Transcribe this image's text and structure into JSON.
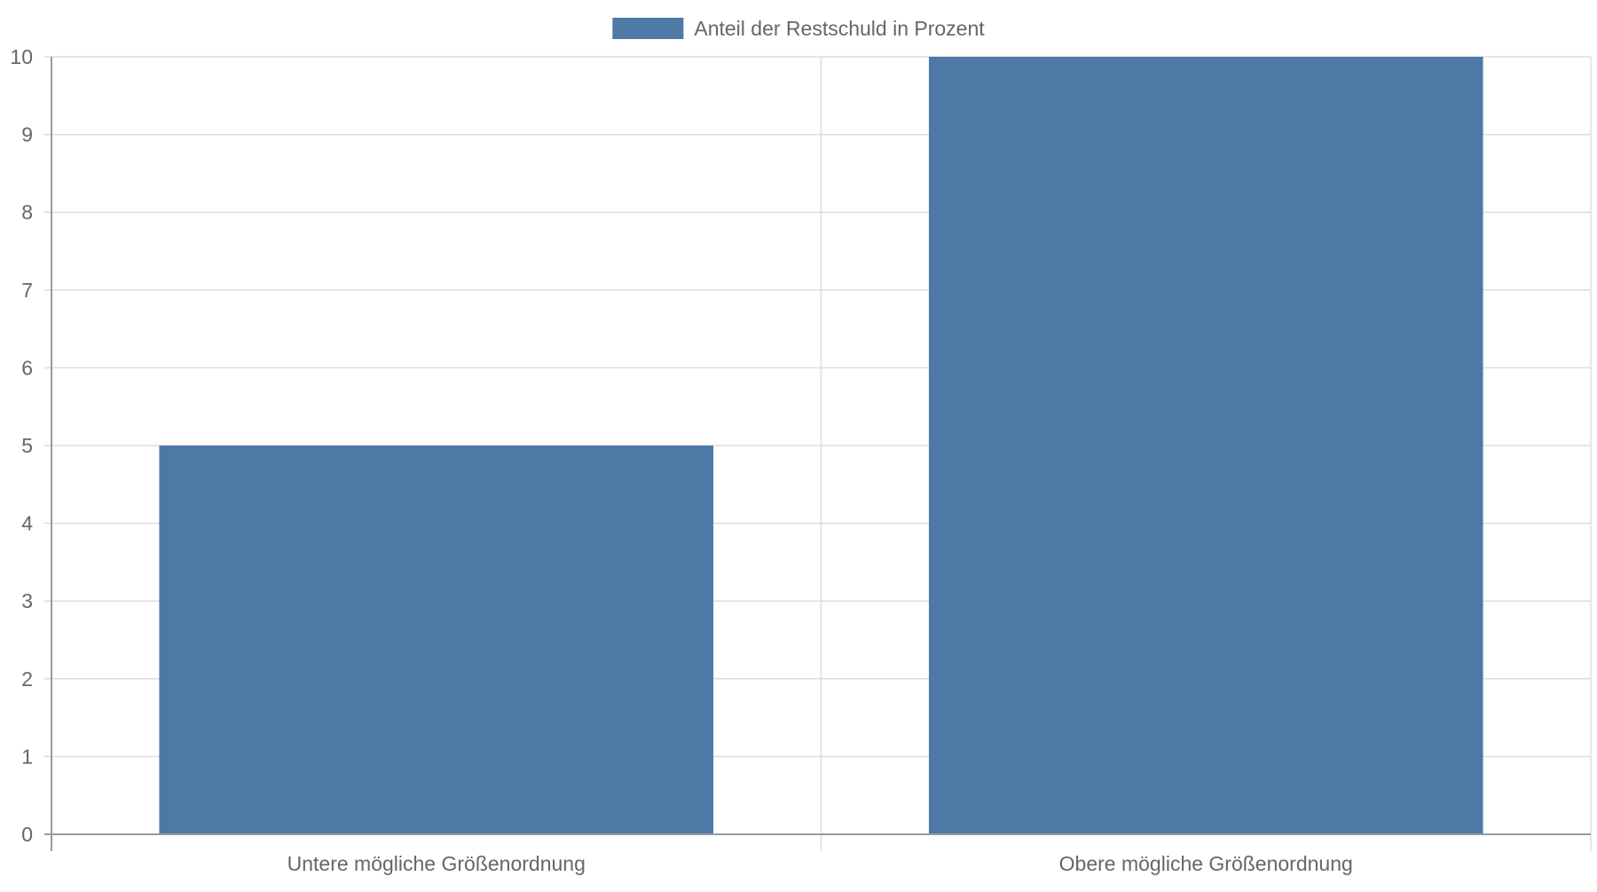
{
  "chart_data": {
    "type": "bar",
    "categories": [
      "Untere mögliche Größenordnung",
      "Obere mögliche Größenordnung"
    ],
    "series": [
      {
        "name": "Anteil der Restschuld in Prozent",
        "values": [
          5,
          10
        ],
        "color": "#4e79a7"
      }
    ],
    "ylim": [
      0,
      10
    ],
    "yticks": [
      "0",
      "1",
      "2",
      "3",
      "4",
      "5",
      "6",
      "7",
      "8",
      "9",
      "10"
    ],
    "grid": true,
    "legend_position": "top-center",
    "colors": {
      "bar": "#4e79a7",
      "grid": "#dddddd",
      "axis": "#999999",
      "text": "#666666"
    }
  }
}
